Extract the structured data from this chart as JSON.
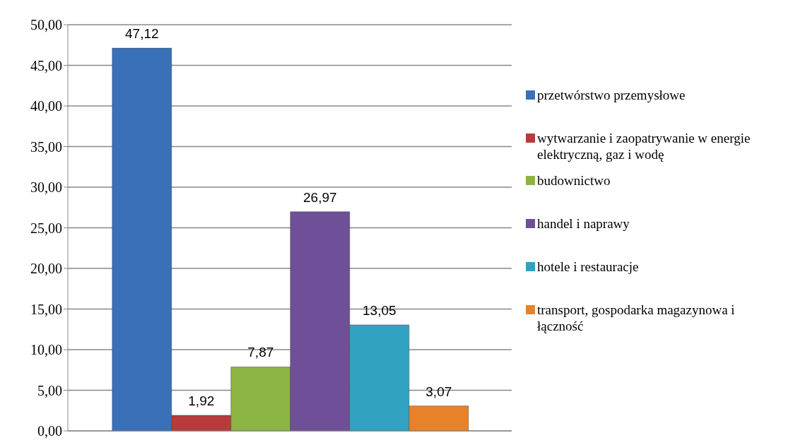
{
  "chart_data": {
    "type": "bar",
    "categories": [
      null
    ],
    "series": [
      {
        "name": "przetwórstwo przemysłowe",
        "color": "#3a70b8",
        "values": [
          47.12
        ],
        "value_labels": [
          "47,12"
        ]
      },
      {
        "name": "wytwarzanie i zaopatrywanie w energie elektryczną, gaz i wodę",
        "color": "#b83a3a",
        "values": [
          1.92
        ],
        "value_labels": [
          "1,92"
        ]
      },
      {
        "name": "budownictwo",
        "color": "#8cb443",
        "values": [
          7.87
        ],
        "value_labels": [
          "7,87"
        ]
      },
      {
        "name": "handel i naprawy",
        "color": "#6e4f98",
        "values": [
          26.97
        ],
        "value_labels": [
          "26,97"
        ]
      },
      {
        "name": "hotele i restauracje",
        "color": "#31a2c2",
        "values": [
          13.05
        ],
        "value_labels": [
          "13,05"
        ]
      },
      {
        "name": "transport, gospodarka magazynowa i łączność",
        "color": "#e8822a",
        "values": [
          3.07
        ],
        "value_labels": [
          "3,07"
        ]
      }
    ],
    "ylim": [
      0,
      50
    ],
    "yticks": [
      {
        "value": 0,
        "label": "0,00"
      },
      {
        "value": 5,
        "label": "5,00"
      },
      {
        "value": 10,
        "label": "10,00"
      },
      {
        "value": 15,
        "label": "15,00"
      },
      {
        "value": 20,
        "label": "20,00"
      },
      {
        "value": 25,
        "label": "25,00"
      },
      {
        "value": 30,
        "label": "30,00"
      },
      {
        "value": 35,
        "label": "35,00"
      },
      {
        "value": 40,
        "label": "40,00"
      },
      {
        "value": 45,
        "label": "45,00"
      },
      {
        "value": 50,
        "label": "50,00"
      }
    ],
    "grid": "y",
    "legend": "right"
  }
}
